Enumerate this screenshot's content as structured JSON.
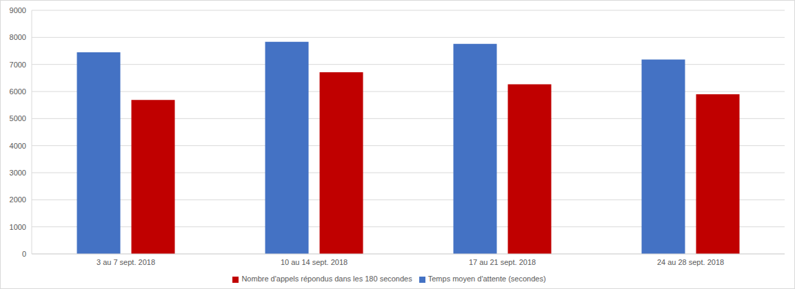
{
  "chart_data": {
    "type": "bar",
    "categories": [
      "3 au 7 sept. 2018",
      "10 au 14 sept. 2018",
      "17 au 21 sept. 2018",
      "24 au 28 sept. 2018"
    ],
    "series": [
      {
        "name": "Temps moyen d'attente (secondes)",
        "color": "#4472c4",
        "values": [
          7450,
          7840,
          7760,
          7180
        ]
      },
      {
        "name": "Nombre d'appels répondus dans les 180 secondes",
        "color": "#c00000",
        "values": [
          5690,
          6710,
          6270,
          5900
        ]
      }
    ],
    "ylim": [
      0,
      9000
    ],
    "yticks": [
      0,
      1000,
      2000,
      3000,
      4000,
      5000,
      6000,
      7000,
      8000,
      9000
    ],
    "grid": true,
    "legend": "bottom"
  }
}
